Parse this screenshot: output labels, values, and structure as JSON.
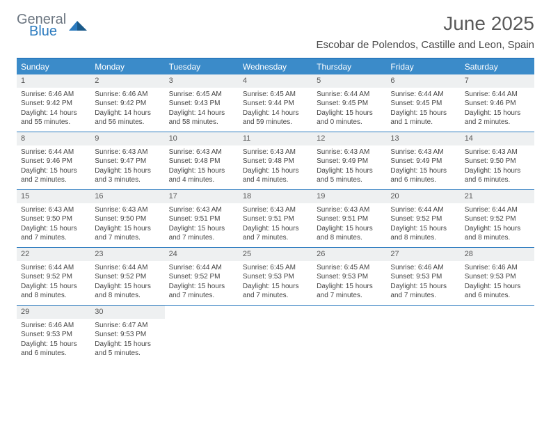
{
  "brand": {
    "name1": "General",
    "name2": "Blue"
  },
  "title": "June 2025",
  "location": "Escobar de Polendos, Castille and Leon, Spain",
  "colors": {
    "header_bg": "#3b8bc9",
    "border": "#2c7bbf",
    "daynum_bg": "#eef0f1",
    "text": "#444444",
    "title_color": "#5a5a5a"
  },
  "day_names": [
    "Sunday",
    "Monday",
    "Tuesday",
    "Wednesday",
    "Thursday",
    "Friday",
    "Saturday"
  ],
  "weeks": [
    [
      {
        "num": "1",
        "sunrise": "Sunrise: 6:46 AM",
        "sunset": "Sunset: 9:42 PM",
        "daylight": "Daylight: 14 hours and 55 minutes."
      },
      {
        "num": "2",
        "sunrise": "Sunrise: 6:46 AM",
        "sunset": "Sunset: 9:42 PM",
        "daylight": "Daylight: 14 hours and 56 minutes."
      },
      {
        "num": "3",
        "sunrise": "Sunrise: 6:45 AM",
        "sunset": "Sunset: 9:43 PM",
        "daylight": "Daylight: 14 hours and 58 minutes."
      },
      {
        "num": "4",
        "sunrise": "Sunrise: 6:45 AM",
        "sunset": "Sunset: 9:44 PM",
        "daylight": "Daylight: 14 hours and 59 minutes."
      },
      {
        "num": "5",
        "sunrise": "Sunrise: 6:44 AM",
        "sunset": "Sunset: 9:45 PM",
        "daylight": "Daylight: 15 hours and 0 minutes."
      },
      {
        "num": "6",
        "sunrise": "Sunrise: 6:44 AM",
        "sunset": "Sunset: 9:45 PM",
        "daylight": "Daylight: 15 hours and 1 minute."
      },
      {
        "num": "7",
        "sunrise": "Sunrise: 6:44 AM",
        "sunset": "Sunset: 9:46 PM",
        "daylight": "Daylight: 15 hours and 2 minutes."
      }
    ],
    [
      {
        "num": "8",
        "sunrise": "Sunrise: 6:44 AM",
        "sunset": "Sunset: 9:46 PM",
        "daylight": "Daylight: 15 hours and 2 minutes."
      },
      {
        "num": "9",
        "sunrise": "Sunrise: 6:43 AM",
        "sunset": "Sunset: 9:47 PM",
        "daylight": "Daylight: 15 hours and 3 minutes."
      },
      {
        "num": "10",
        "sunrise": "Sunrise: 6:43 AM",
        "sunset": "Sunset: 9:48 PM",
        "daylight": "Daylight: 15 hours and 4 minutes."
      },
      {
        "num": "11",
        "sunrise": "Sunrise: 6:43 AM",
        "sunset": "Sunset: 9:48 PM",
        "daylight": "Daylight: 15 hours and 4 minutes."
      },
      {
        "num": "12",
        "sunrise": "Sunrise: 6:43 AM",
        "sunset": "Sunset: 9:49 PM",
        "daylight": "Daylight: 15 hours and 5 minutes."
      },
      {
        "num": "13",
        "sunrise": "Sunrise: 6:43 AM",
        "sunset": "Sunset: 9:49 PM",
        "daylight": "Daylight: 15 hours and 6 minutes."
      },
      {
        "num": "14",
        "sunrise": "Sunrise: 6:43 AM",
        "sunset": "Sunset: 9:50 PM",
        "daylight": "Daylight: 15 hours and 6 minutes."
      }
    ],
    [
      {
        "num": "15",
        "sunrise": "Sunrise: 6:43 AM",
        "sunset": "Sunset: 9:50 PM",
        "daylight": "Daylight: 15 hours and 7 minutes."
      },
      {
        "num": "16",
        "sunrise": "Sunrise: 6:43 AM",
        "sunset": "Sunset: 9:50 PM",
        "daylight": "Daylight: 15 hours and 7 minutes."
      },
      {
        "num": "17",
        "sunrise": "Sunrise: 6:43 AM",
        "sunset": "Sunset: 9:51 PM",
        "daylight": "Daylight: 15 hours and 7 minutes."
      },
      {
        "num": "18",
        "sunrise": "Sunrise: 6:43 AM",
        "sunset": "Sunset: 9:51 PM",
        "daylight": "Daylight: 15 hours and 7 minutes."
      },
      {
        "num": "19",
        "sunrise": "Sunrise: 6:43 AM",
        "sunset": "Sunset: 9:51 PM",
        "daylight": "Daylight: 15 hours and 8 minutes."
      },
      {
        "num": "20",
        "sunrise": "Sunrise: 6:44 AM",
        "sunset": "Sunset: 9:52 PM",
        "daylight": "Daylight: 15 hours and 8 minutes."
      },
      {
        "num": "21",
        "sunrise": "Sunrise: 6:44 AM",
        "sunset": "Sunset: 9:52 PM",
        "daylight": "Daylight: 15 hours and 8 minutes."
      }
    ],
    [
      {
        "num": "22",
        "sunrise": "Sunrise: 6:44 AM",
        "sunset": "Sunset: 9:52 PM",
        "daylight": "Daylight: 15 hours and 8 minutes."
      },
      {
        "num": "23",
        "sunrise": "Sunrise: 6:44 AM",
        "sunset": "Sunset: 9:52 PM",
        "daylight": "Daylight: 15 hours and 8 minutes."
      },
      {
        "num": "24",
        "sunrise": "Sunrise: 6:44 AM",
        "sunset": "Sunset: 9:52 PM",
        "daylight": "Daylight: 15 hours and 7 minutes."
      },
      {
        "num": "25",
        "sunrise": "Sunrise: 6:45 AM",
        "sunset": "Sunset: 9:53 PM",
        "daylight": "Daylight: 15 hours and 7 minutes."
      },
      {
        "num": "26",
        "sunrise": "Sunrise: 6:45 AM",
        "sunset": "Sunset: 9:53 PM",
        "daylight": "Daylight: 15 hours and 7 minutes."
      },
      {
        "num": "27",
        "sunrise": "Sunrise: 6:46 AM",
        "sunset": "Sunset: 9:53 PM",
        "daylight": "Daylight: 15 hours and 7 minutes."
      },
      {
        "num": "28",
        "sunrise": "Sunrise: 6:46 AM",
        "sunset": "Sunset: 9:53 PM",
        "daylight": "Daylight: 15 hours and 6 minutes."
      }
    ],
    [
      {
        "num": "29",
        "sunrise": "Sunrise: 6:46 AM",
        "sunset": "Sunset: 9:53 PM",
        "daylight": "Daylight: 15 hours and 6 minutes."
      },
      {
        "num": "30",
        "sunrise": "Sunrise: 6:47 AM",
        "sunset": "Sunset: 9:53 PM",
        "daylight": "Daylight: 15 hours and 5 minutes."
      },
      null,
      null,
      null,
      null,
      null
    ]
  ]
}
